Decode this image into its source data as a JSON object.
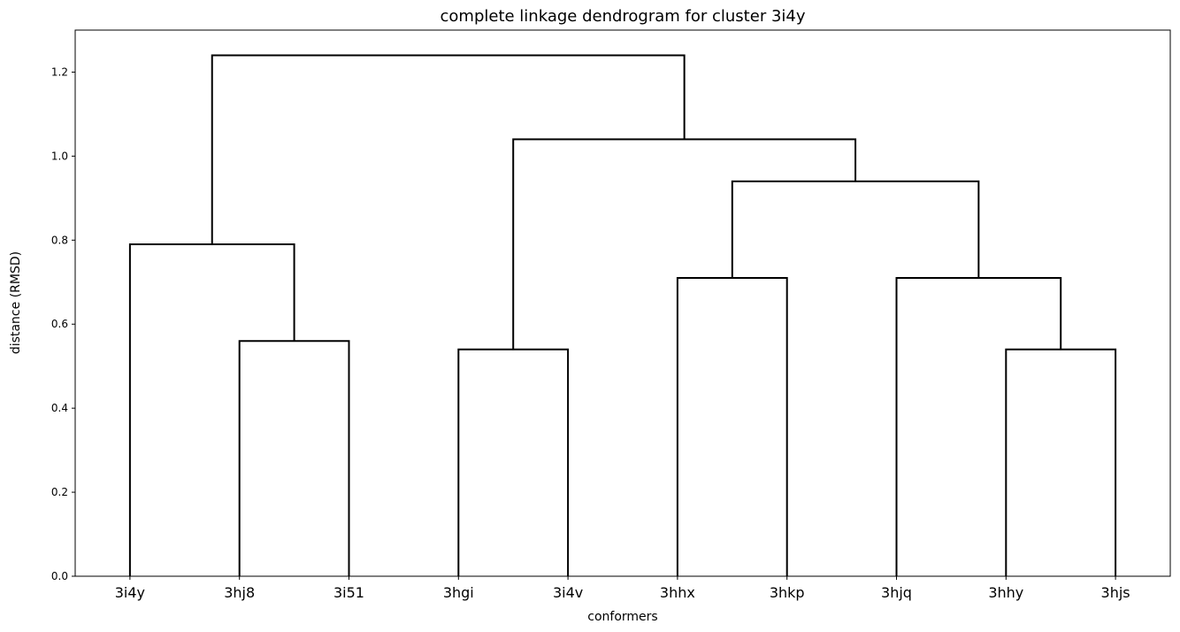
{
  "chart_data": {
    "type": "dendrogram",
    "title": "complete linkage dendrogram for cluster 3i4y",
    "xlabel": "conformers",
    "ylabel": "distance (RMSD)",
    "ylim": [
      0,
      1.3
    ],
    "yticks": [
      0.0,
      0.2,
      0.4,
      0.6,
      0.8,
      1.0,
      1.2
    ],
    "ytick_labels": [
      "0.0",
      "0.2",
      "0.4",
      "0.6",
      "0.8",
      "1.0",
      "1.2"
    ],
    "leaves": [
      "3i4y",
      "3hj8",
      "3i51",
      "3hgi",
      "3i4v",
      "3hhx",
      "3hkp",
      "3hjq",
      "3hhy",
      "3hjs"
    ],
    "merges": [
      {
        "left": "3hj8",
        "right": "3i51",
        "height": 0.56
      },
      {
        "left": "3hgi",
        "right": "3i4v",
        "height": 0.54
      },
      {
        "left": "3hhx",
        "right": "3hkp",
        "height": 0.71
      },
      {
        "left": "3hhy",
        "right": "3hjs",
        "height": 0.54
      },
      {
        "left": "3hjq",
        "right": "[3hhy,3hjs]",
        "height": 0.71
      },
      {
        "left": "3i4y",
        "right": "[3hj8,3i51]",
        "height": 0.79
      },
      {
        "left": "[3hhx,3hkp]",
        "right": "[3hjq,3hhy,3hjs]",
        "height": 0.94
      },
      {
        "left": "[3hgi,3i4v]",
        "right": "[3hhx,3hkp,3hjq,3hhy,3hjs]",
        "height": 1.04
      },
      {
        "left": "[3i4y,3hj8,3i51]",
        "right": "[3hgi,3i4v,3hhx,3hkp,3hjq,3hhy,3hjs]",
        "height": 1.24
      }
    ],
    "grid": false,
    "color": "#000000"
  }
}
